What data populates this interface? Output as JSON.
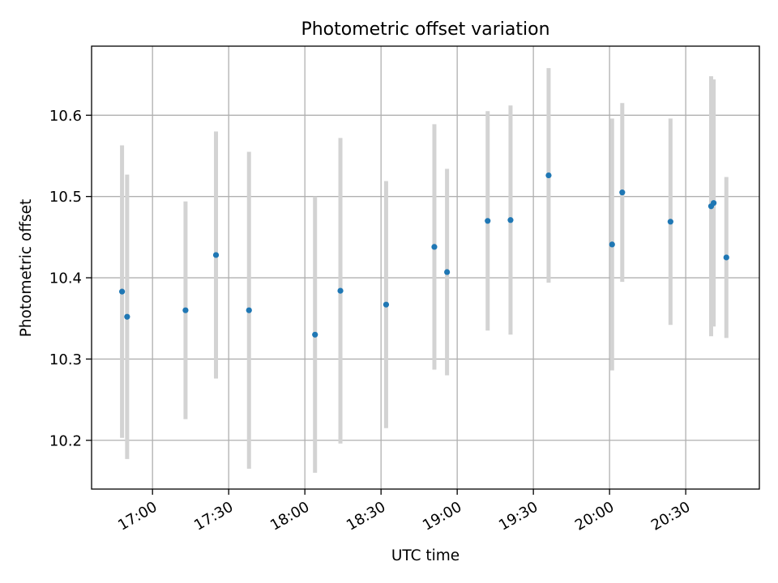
{
  "chart_data": {
    "type": "scatter",
    "title": "Photometric offset variation",
    "xlabel": "UTC time",
    "ylabel": "Photometric offset",
    "x_ticks": [
      "17:00",
      "17:30",
      "18:00",
      "18:30",
      "19:00",
      "19:30",
      "20:00",
      "20:30"
    ],
    "y_ticks": [
      "10.2",
      "10.3",
      "10.4",
      "10.5",
      "10.6"
    ],
    "xlim": [
      "16:36",
      "20:59"
    ],
    "ylim": [
      10.14,
      10.685
    ],
    "grid": true,
    "legend": "none",
    "colors": {
      "points": "#1f77b4",
      "errorbars": "#d3d3d3",
      "grid": "#b0b0b0"
    },
    "series": [
      {
        "points": [
          {
            "time": "16:48",
            "y": 10.383,
            "err": 0.18
          },
          {
            "time": "16:50",
            "y": 10.352,
            "err": 0.175
          },
          {
            "time": "17:13",
            "y": 10.36,
            "err": 0.134
          },
          {
            "time": "17:25",
            "y": 10.428,
            "err": 0.152
          },
          {
            "time": "17:38",
            "y": 10.36,
            "err": 0.195
          },
          {
            "time": "18:04",
            "y": 10.33,
            "err": 0.17
          },
          {
            "time": "18:14",
            "y": 10.384,
            "err": 0.188
          },
          {
            "time": "18:32",
            "y": 10.367,
            "err": 0.152
          },
          {
            "time": "18:51",
            "y": 10.438,
            "err": 0.151
          },
          {
            "time": "18:56",
            "y": 10.407,
            "err": 0.127
          },
          {
            "time": "19:12",
            "y": 10.47,
            "err": 0.135
          },
          {
            "time": "19:21",
            "y": 10.471,
            "err": 0.141
          },
          {
            "time": "19:36",
            "y": 10.526,
            "err": 0.132
          },
          {
            "time": "20:01",
            "y": 10.441,
            "err": 0.155
          },
          {
            "time": "20:05",
            "y": 10.505,
            "err": 0.11
          },
          {
            "time": "20:24",
            "y": 10.469,
            "err": 0.127
          },
          {
            "time": "20:40",
            "y": 10.488,
            "err": 0.16
          },
          {
            "time": "20:41",
            "y": 10.492,
            "err": 0.152
          },
          {
            "time": "20:46",
            "y": 10.425,
            "err": 0.099
          }
        ]
      }
    ]
  }
}
